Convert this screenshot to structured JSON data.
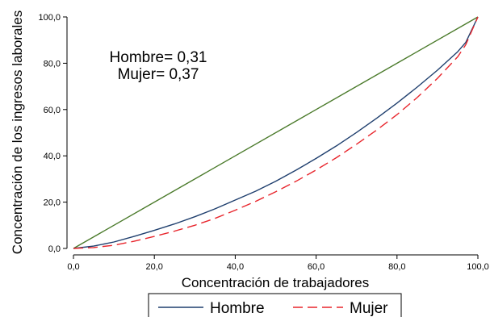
{
  "chart_data": {
    "type": "line",
    "title": "",
    "xlabel": "Concentración de trabajadores",
    "ylabel": "Concentración de los ingresos laborales",
    "xlim": [
      0,
      100
    ],
    "ylim": [
      0,
      100
    ],
    "x_ticks": [
      "0,0",
      "20,0",
      "40,0",
      "60,0",
      "80,0",
      "100,0"
    ],
    "y_ticks": [
      "0,0",
      "20,0",
      "40,0",
      "60,0",
      "80,0",
      "100,0"
    ],
    "grid": false,
    "legend_position": "bottom",
    "annotations": [
      "Hombre= 0,31",
      "Mujer= 0,37"
    ],
    "colors": {
      "equality": "#4a7a2a",
      "hombre": "#1f3f6e",
      "mujer": "#e8252c"
    },
    "series": [
      {
        "key": "equality",
        "style": "solid",
        "x": [
          0,
          100
        ],
        "y": [
          0,
          100
        ]
      },
      {
        "key": "hombre",
        "name": "Hombre",
        "style": "solid",
        "x": [
          0,
          5,
          10,
          15,
          20,
          25,
          30,
          35,
          40,
          45,
          50,
          55,
          60,
          65,
          70,
          75,
          80,
          85,
          90,
          95,
          97,
          100
        ],
        "y": [
          0,
          1.0,
          2.8,
          5.2,
          7.8,
          10.6,
          13.7,
          17.1,
          20.9,
          24.7,
          29.0,
          33.8,
          38.9,
          44.3,
          50.1,
          56.3,
          62.8,
          69.7,
          77.0,
          85.0,
          89.0,
          100
        ]
      },
      {
        "key": "mujer",
        "name": "Mujer",
        "style": "dashed",
        "x": [
          0,
          5,
          10,
          15,
          20,
          25,
          30,
          35,
          40,
          45,
          50,
          55,
          60,
          65,
          70,
          75,
          80,
          85,
          90,
          95,
          97,
          100
        ],
        "y": [
          0,
          0.4,
          1.4,
          3.1,
          5.2,
          7.5,
          10.0,
          13.0,
          16.5,
          20.3,
          24.5,
          29.0,
          33.9,
          39.2,
          45.0,
          51.2,
          57.8,
          65.2,
          73.5,
          82.8,
          88.0,
          100
        ]
      }
    ]
  }
}
